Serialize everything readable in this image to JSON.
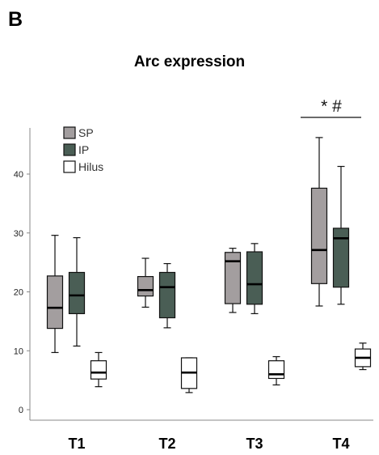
{
  "panel_label": "B",
  "chart_data": {
    "type": "boxplot",
    "title": "Arc expression",
    "xlabel": "",
    "ylabel": "",
    "categories": [
      "T1",
      "T2",
      "T3",
      "T4"
    ],
    "y_ticks": [
      0,
      10,
      20,
      30,
      40
    ],
    "ylim": [
      -2,
      48
    ],
    "grid": false,
    "legend_position": "top-left",
    "series": [
      {
        "name": "SP",
        "color": "#a39e9f",
        "boxes": [
          {
            "min": 9.7,
            "q1": 13.8,
            "median": 17.3,
            "q3": 22.7,
            "max": 29.6
          },
          {
            "min": 17.4,
            "q1": 19.3,
            "median": 20.3,
            "q3": 22.6,
            "max": 25.7
          },
          {
            "min": 16.5,
            "q1": 18.0,
            "median": 25.2,
            "q3": 26.7,
            "max": 27.4
          },
          {
            "min": 17.6,
            "q1": 21.4,
            "median": 27.1,
            "q3": 37.6,
            "max": 46.2
          }
        ]
      },
      {
        "name": "IP",
        "color": "#4a5e55",
        "boxes": [
          {
            "min": 10.8,
            "q1": 16.3,
            "median": 19.4,
            "q3": 23.3,
            "max": 29.2
          },
          {
            "min": 13.9,
            "q1": 15.6,
            "median": 20.8,
            "q3": 23.3,
            "max": 24.8
          },
          {
            "min": 16.3,
            "q1": 17.9,
            "median": 21.3,
            "q3": 26.8,
            "max": 28.2
          },
          {
            "min": 17.9,
            "q1": 20.8,
            "median": 29.1,
            "q3": 30.8,
            "max": 41.3
          }
        ]
      },
      {
        "name": "Hilus",
        "color": "#ffffff",
        "boxes": [
          {
            "min": 3.9,
            "q1": 5.2,
            "median": 6.3,
            "q3": 8.3,
            "max": 9.7
          },
          {
            "min": 2.9,
            "q1": 3.6,
            "median": 6.3,
            "q3": 8.8,
            "max": 8.8
          },
          {
            "min": 4.2,
            "q1": 5.3,
            "median": 6.0,
            "q3": 8.3,
            "max": 9.0
          },
          {
            "min": 6.8,
            "q1": 7.3,
            "median": 8.8,
            "q3": 10.3,
            "max": 11.3
          }
        ]
      }
    ],
    "annotations": [
      {
        "text": "* #",
        "category": "T4",
        "note_above_bracket": true
      }
    ]
  }
}
